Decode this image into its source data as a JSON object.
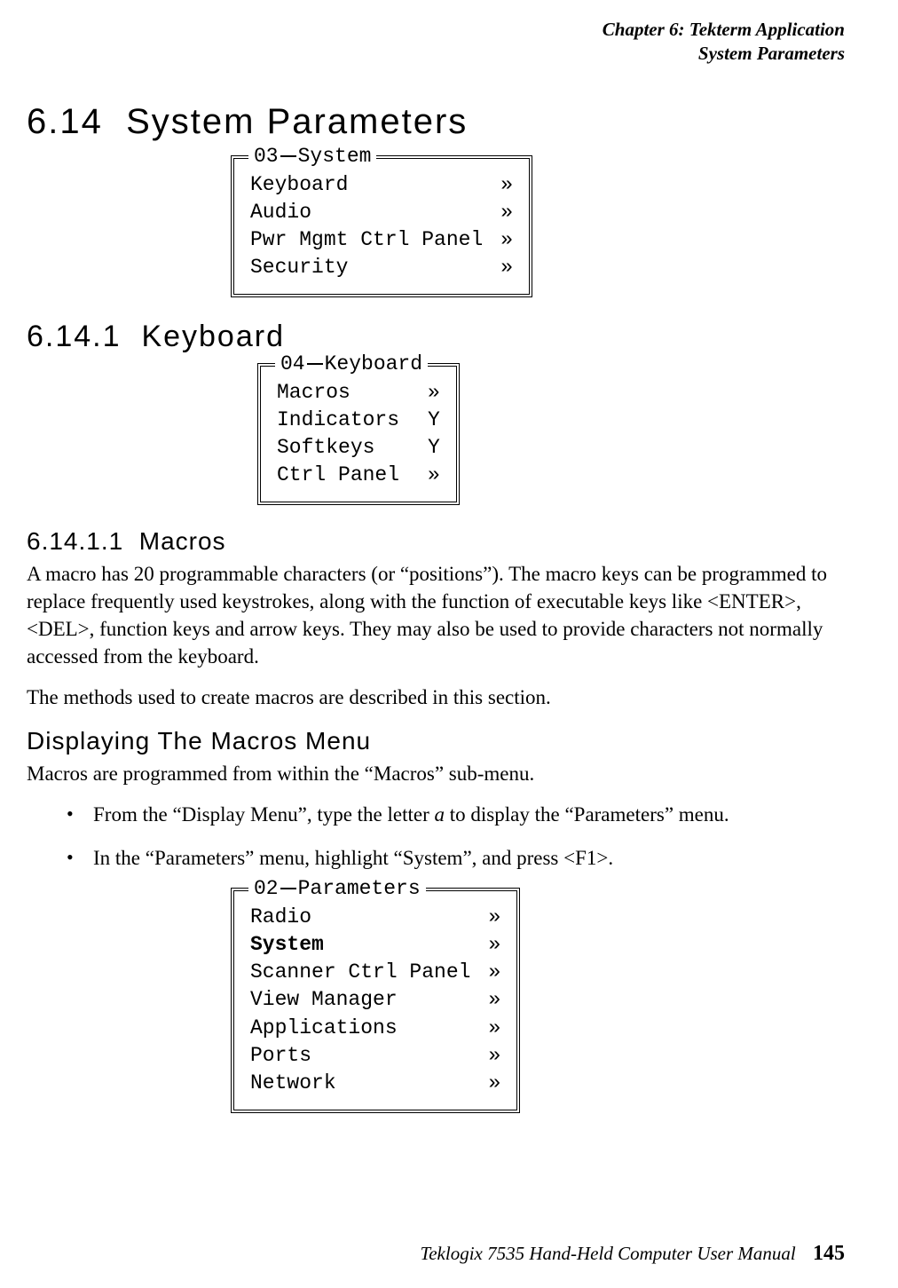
{
  "header": {
    "chapter": "Chapter 6: Tekterm Application",
    "section": "System Parameters"
  },
  "sections": {
    "main_num": "6.14",
    "main_title": "System Parameters",
    "sub_num": "6.14.1",
    "sub_title": "Keyboard",
    "subsub_num": "6.14.1.1",
    "subsub_title": "Macros",
    "free_heading": "Displaying The Macros Menu"
  },
  "paragraphs": {
    "macros_1": "A macro has 20 programmable characters (or “positions”). The macro keys can be programmed to replace frequently used keystrokes, along with the function of executable keys like <ENTER>, <DEL>, function keys and arrow keys. They may also be used to provide characters not normally accessed from the keyboard.",
    "macros_2": "The methods used to create macros are described in this section.",
    "display_1": "Macros are programmed from within the “Macros” sub-menu."
  },
  "bullets": {
    "b1_pre": "From the “Display Menu”, type the letter ",
    "b1_em": "a",
    "b1_post": " to display the “Parameters” menu.",
    "b2": "In the “Parameters” menu, highlight “System”, and press <F1>."
  },
  "menu_system": {
    "legend_num": "03",
    "legend_name": "System",
    "items": [
      {
        "label": "Keyboard",
        "val": "»"
      },
      {
        "label": "Audio",
        "val": "»"
      },
      {
        "label": "Pwr Mgmt Ctrl Panel",
        "val": "»"
      },
      {
        "label": "Security",
        "val": "»"
      }
    ]
  },
  "menu_keyboard": {
    "legend_num": "04",
    "legend_name": "Keyboard",
    "items": [
      {
        "label": "Macros",
        "val": "»"
      },
      {
        "label": "Indicators",
        "val": "Y"
      },
      {
        "label": "Softkeys",
        "val": "Y"
      },
      {
        "label": "Ctrl Panel",
        "val": "»"
      }
    ]
  },
  "menu_parameters": {
    "legend_num": "02",
    "legend_name": "Parameters",
    "items": [
      {
        "label": "Radio",
        "val": "»",
        "bold": false
      },
      {
        "label": "System",
        "val": "»",
        "bold": true
      },
      {
        "label": "Scanner Ctrl Panel",
        "val": "»",
        "bold": false
      },
      {
        "label": "View Manager",
        "val": "»",
        "bold": false
      },
      {
        "label": "Applications",
        "val": "»",
        "bold": false
      },
      {
        "label": "Ports",
        "val": "»",
        "bold": false
      },
      {
        "label": "Network",
        "val": "»",
        "bold": false
      }
    ]
  },
  "footer": {
    "book": "Teklogix 7535 Hand-Held Computer User Manual",
    "page": "145"
  },
  "box_widths": {
    "system_label_w": 260,
    "keyboard_label_w": 150,
    "parameters_label_w": 240
  }
}
